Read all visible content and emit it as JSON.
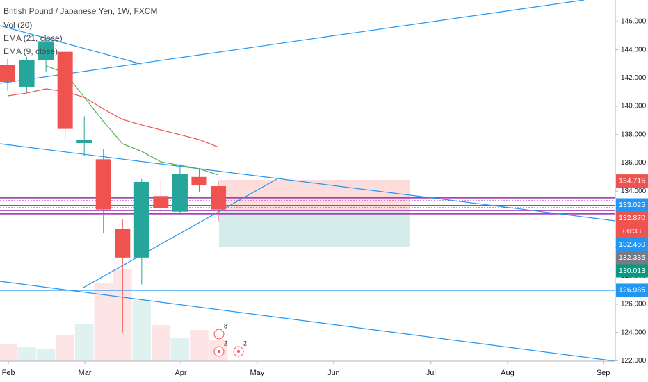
{
  "chart_data": {
    "type": "candlestick",
    "title": "British Pound / Japanese Yen, 1W, FXCM",
    "indicators": [
      "Vol (20)",
      "EMA (21, close)",
      "EMA (9, close)"
    ],
    "up_color": "#26a69a",
    "down_color": "#ef5350",
    "x": [
      0,
      1,
      2,
      3,
      4,
      5,
      6,
      7,
      8,
      9,
      10,
      11
    ],
    "open": [
      142.95,
      141.38,
      143.25,
      143.85,
      137.4,
      136.25,
      131.35,
      129.3,
      133.65,
      132.55,
      135.0,
      134.35
    ],
    "high": [
      143.35,
      143.5,
      144.8,
      144.6,
      139.3,
      137.0,
      132.0,
      134.85,
      134.8,
      135.9,
      135.6,
      134.7
    ],
    "low": [
      141.1,
      141.0,
      142.4,
      137.6,
      136.5,
      131.0,
      124.0,
      127.4,
      132.3,
      132.3,
      133.9,
      131.8
    ],
    "close": [
      141.72,
      143.25,
      144.6,
      138.4,
      137.6,
      132.7,
      129.3,
      134.65,
      132.8,
      135.2,
      134.4,
      132.7
    ],
    "volume": [
      25,
      20,
      18,
      38,
      54,
      113,
      132,
      88,
      52,
      33,
      45,
      30
    ],
    "volume_lim": [
      0,
      520
    ],
    "series": [
      {
        "name": "EMA (21, close)",
        "color": "#f0504f",
        "values": [
          140.74,
          140.94,
          141.23,
          141.04,
          140.64,
          139.81,
          139.07,
          138.68,
          138.33,
          137.99,
          137.64,
          137.11
        ]
      },
      {
        "name": "EMA (9, close)",
        "color": "#4caf50",
        "values": [
          null,
          null,
          142.86,
          142.36,
          140.64,
          138.92,
          137.35,
          136.81,
          136.07,
          135.83,
          135.58,
          135.14
        ]
      }
    ],
    "xlim": [
      -0.4,
      31.73
    ],
    "xticks": [
      {
        "value": 0.04,
        "label": "Feb"
      },
      {
        "value": 4.03,
        "label": "Mar"
      },
      {
        "value": 9.04,
        "label": "Apr"
      },
      {
        "value": 13.03,
        "label": "May"
      },
      {
        "value": 17.02,
        "label": "Jun"
      },
      {
        "value": 22.1,
        "label": "Jul"
      },
      {
        "value": 26.1,
        "label": "Aug"
      },
      {
        "value": 31.1,
        "label": "Sep"
      }
    ],
    "ylim": [
      121.97,
      147.52
    ],
    "yticks": [
      {
        "value": 122,
        "label": "122.000"
      },
      {
        "value": 124,
        "label": "124.000"
      },
      {
        "value": 126,
        "label": "126.000"
      },
      {
        "value": 128,
        "label": "128.000"
      },
      {
        "value": 130,
        "label": "130.000"
      },
      {
        "value": 132,
        "label": "132.000"
      },
      {
        "value": 134,
        "label": "134.000"
      },
      {
        "value": 136,
        "label": "136.000"
      },
      {
        "value": 138,
        "label": "138.000"
      },
      {
        "value": 140,
        "label": "140.000"
      },
      {
        "value": 142,
        "label": "142.000"
      },
      {
        "value": 144,
        "label": "144.000"
      },
      {
        "value": 146,
        "label": "146.000"
      }
    ],
    "levels": [
      {
        "value": 133.52,
        "color": "#9c27b0"
      },
      {
        "value": 133.32,
        "color": "#9c27b0",
        "dashed": true
      },
      {
        "value": 132.98,
        "color": "#9c27b0"
      },
      {
        "value": 132.83,
        "color": "#9c27b0",
        "dashed": true
      },
      {
        "value": 132.63,
        "color": "#9c27b0"
      },
      {
        "value": 132.39,
        "color": "#9c27b0"
      },
      {
        "value": 126.985,
        "color": "#2196f3"
      }
    ],
    "price_labels": [
      {
        "value": 134.715,
        "label": "134.715",
        "color": "#ef5350"
      },
      {
        "value": 133.025,
        "label": "133.025",
        "color": "#2196f3"
      },
      {
        "value": 132.87,
        "label": "132.870",
        "color": "#ef5350",
        "countdown": "06:33"
      },
      {
        "value": 132.46,
        "label": "132.460",
        "color": "#2196f3"
      },
      {
        "value": 132.335,
        "label": "132.335",
        "color": "#787b86"
      },
      {
        "value": 130.013,
        "label": "130.013",
        "color": "#089981"
      },
      {
        "value": 126.985,
        "label": "126.985",
        "color": "#2196f3"
      }
    ],
    "events": [
      "8",
      "2",
      "2"
    ]
  }
}
